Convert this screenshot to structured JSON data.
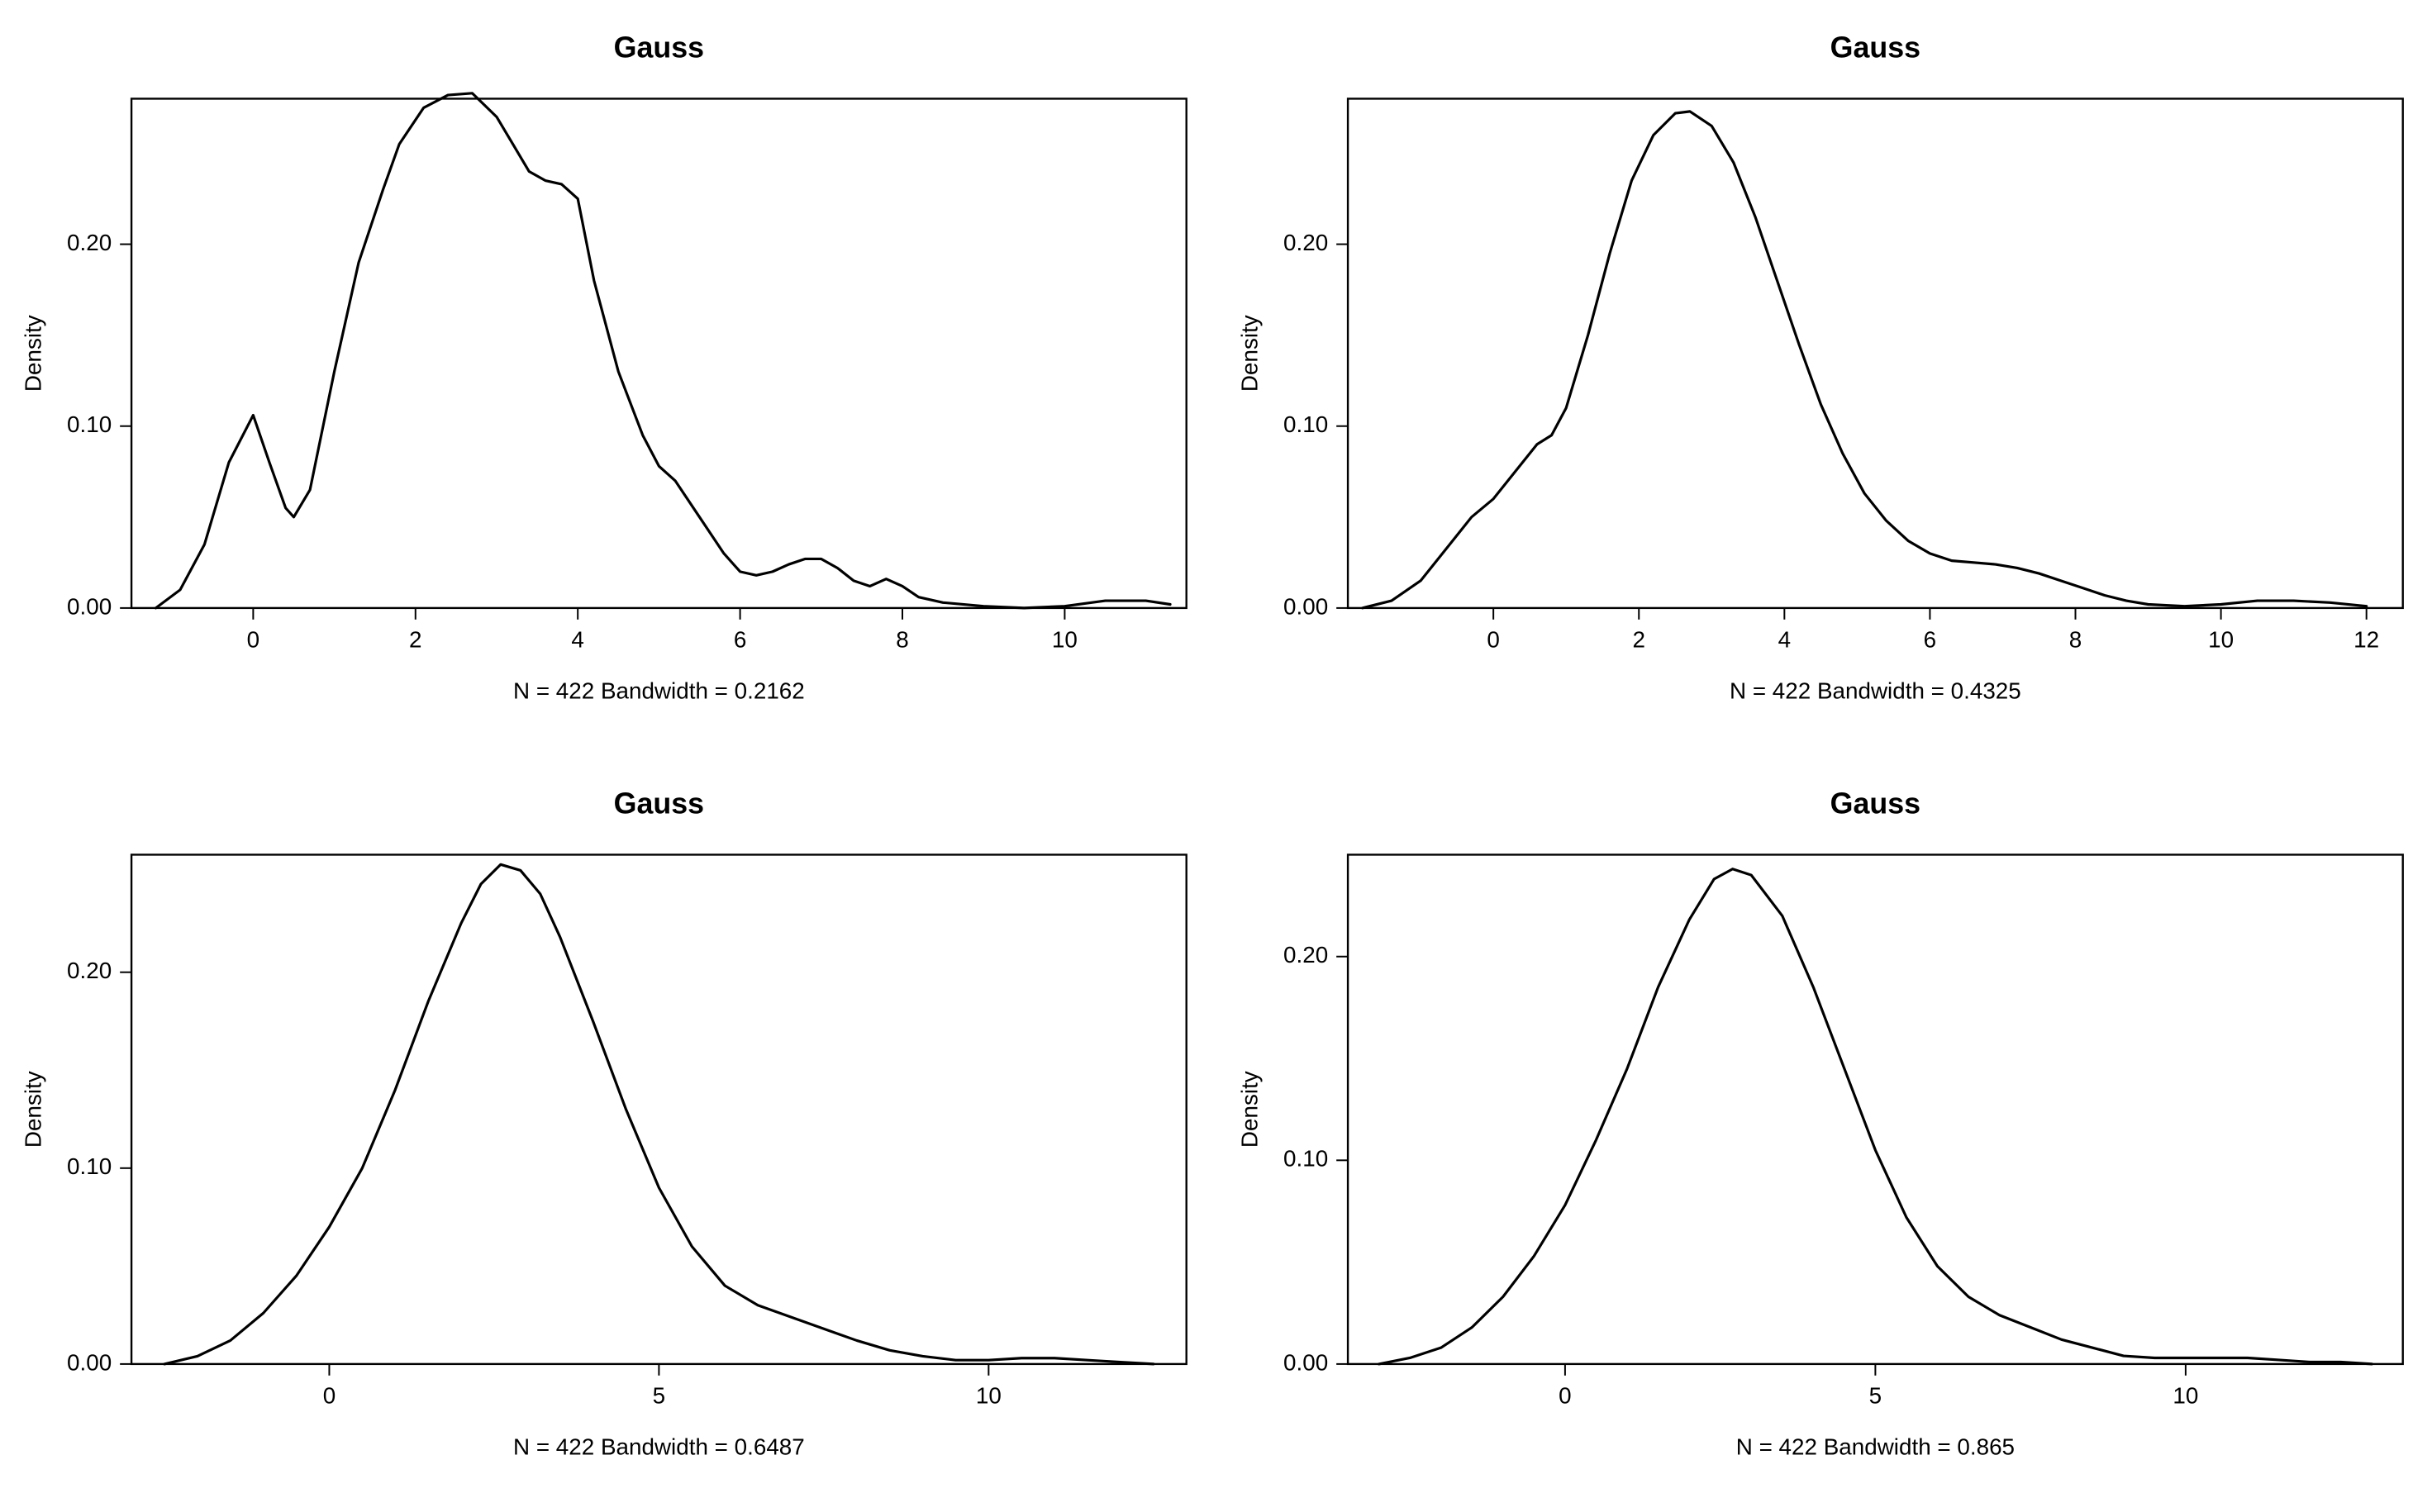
{
  "layout": {
    "rows": 2,
    "cols": 2,
    "background_color": "#ffffff"
  },
  "panels": [
    {
      "id": "p1",
      "type": "density",
      "title": "Gauss",
      "ylabel": "Density",
      "sublabel": "N = 422   Bandwidth = 0.2162",
      "xlim": [
        -1.5,
        11.5
      ],
      "ylim": [
        0.0,
        0.28
      ],
      "xticks": [
        0,
        2,
        4,
        6,
        8,
        10
      ],
      "yticks": [
        0.0,
        0.1,
        0.2
      ],
      "title_fontsize": 18,
      "title_fontweight": "bold",
      "label_fontsize": 14,
      "tick_fontsize": 14,
      "line_color": "#000000",
      "line_width": 1.6,
      "box_color": "#000000",
      "baseline_color": "#b0b0b0",
      "curve": [
        [
          -1.2,
          0.0
        ],
        [
          -0.9,
          0.01
        ],
        [
          -0.6,
          0.035
        ],
        [
          -0.3,
          0.08
        ],
        [
          0.0,
          0.106
        ],
        [
          0.2,
          0.08
        ],
        [
          0.4,
          0.055
        ],
        [
          0.5,
          0.05
        ],
        [
          0.7,
          0.065
        ],
        [
          1.0,
          0.13
        ],
        [
          1.3,
          0.19
        ],
        [
          1.6,
          0.23
        ],
        [
          1.8,
          0.255
        ],
        [
          2.1,
          0.275
        ],
        [
          2.4,
          0.282
        ],
        [
          2.7,
          0.283
        ],
        [
          3.0,
          0.27
        ],
        [
          3.2,
          0.255
        ],
        [
          3.4,
          0.24
        ],
        [
          3.6,
          0.235
        ],
        [
          3.8,
          0.233
        ],
        [
          4.0,
          0.225
        ],
        [
          4.2,
          0.18
        ],
        [
          4.5,
          0.13
        ],
        [
          4.8,
          0.095
        ],
        [
          5.0,
          0.078
        ],
        [
          5.2,
          0.07
        ],
        [
          5.5,
          0.05
        ],
        [
          5.8,
          0.03
        ],
        [
          6.0,
          0.02
        ],
        [
          6.2,
          0.018
        ],
        [
          6.4,
          0.02
        ],
        [
          6.6,
          0.024
        ],
        [
          6.8,
          0.027
        ],
        [
          7.0,
          0.027
        ],
        [
          7.2,
          0.022
        ],
        [
          7.4,
          0.015
        ],
        [
          7.6,
          0.012
        ],
        [
          7.8,
          0.016
        ],
        [
          8.0,
          0.012
        ],
        [
          8.2,
          0.006
        ],
        [
          8.5,
          0.003
        ],
        [
          9.0,
          0.001
        ],
        [
          9.5,
          0.0
        ],
        [
          10.0,
          0.001
        ],
        [
          10.5,
          0.004
        ],
        [
          11.0,
          0.004
        ],
        [
          11.3,
          0.002
        ]
      ]
    },
    {
      "id": "p2",
      "type": "density",
      "title": "Gauss",
      "ylabel": "Density",
      "sublabel": "N = 422   Bandwidth = 0.4325",
      "xlim": [
        -2,
        12.5
      ],
      "ylim": [
        0.0,
        0.28
      ],
      "xticks": [
        0,
        2,
        4,
        6,
        8,
        10,
        12
      ],
      "yticks": [
        0.0,
        0.1,
        0.2
      ],
      "title_fontsize": 18,
      "title_fontweight": "bold",
      "label_fontsize": 14,
      "tick_fontsize": 14,
      "line_color": "#000000",
      "line_width": 1.6,
      "box_color": "#000000",
      "baseline_color": "#b0b0b0",
      "curve": [
        [
          -1.8,
          0.0
        ],
        [
          -1.4,
          0.004
        ],
        [
          -1.0,
          0.015
        ],
        [
          -0.6,
          0.035
        ],
        [
          -0.3,
          0.05
        ],
        [
          0.0,
          0.06
        ],
        [
          0.3,
          0.075
        ],
        [
          0.6,
          0.09
        ],
        [
          0.8,
          0.095
        ],
        [
          1.0,
          0.11
        ],
        [
          1.3,
          0.15
        ],
        [
          1.6,
          0.195
        ],
        [
          1.9,
          0.235
        ],
        [
          2.2,
          0.26
        ],
        [
          2.5,
          0.272
        ],
        [
          2.7,
          0.273
        ],
        [
          3.0,
          0.265
        ],
        [
          3.3,
          0.245
        ],
        [
          3.6,
          0.215
        ],
        [
          3.9,
          0.18
        ],
        [
          4.2,
          0.145
        ],
        [
          4.5,
          0.112
        ],
        [
          4.8,
          0.085
        ],
        [
          5.1,
          0.063
        ],
        [
          5.4,
          0.048
        ],
        [
          5.7,
          0.037
        ],
        [
          6.0,
          0.03
        ],
        [
          6.3,
          0.026
        ],
        [
          6.6,
          0.025
        ],
        [
          6.9,
          0.024
        ],
        [
          7.2,
          0.022
        ],
        [
          7.5,
          0.019
        ],
        [
          7.8,
          0.015
        ],
        [
          8.1,
          0.011
        ],
        [
          8.4,
          0.007
        ],
        [
          8.7,
          0.004
        ],
        [
          9.0,
          0.002
        ],
        [
          9.5,
          0.001
        ],
        [
          10.0,
          0.002
        ],
        [
          10.5,
          0.004
        ],
        [
          11.0,
          0.004
        ],
        [
          11.5,
          0.003
        ],
        [
          12.0,
          0.001
        ]
      ]
    },
    {
      "id": "p3",
      "type": "density",
      "title": "Gauss",
      "ylabel": "Density",
      "sublabel": "N = 422   Bandwidth = 0.6487",
      "xlim": [
        -3,
        13
      ],
      "ylim": [
        0.0,
        0.26
      ],
      "xticks": [
        0,
        5,
        10
      ],
      "yticks": [
        0.0,
        0.1,
        0.2
      ],
      "title_fontsize": 18,
      "title_fontweight": "bold",
      "label_fontsize": 14,
      "tick_fontsize": 14,
      "line_color": "#000000",
      "line_width": 1.6,
      "box_color": "#000000",
      "baseline_color": "#b0b0b0",
      "curve": [
        [
          -2.5,
          0.0
        ],
        [
          -2.0,
          0.004
        ],
        [
          -1.5,
          0.012
        ],
        [
          -1.0,
          0.026
        ],
        [
          -0.5,
          0.045
        ],
        [
          0.0,
          0.07
        ],
        [
          0.5,
          0.1
        ],
        [
          1.0,
          0.14
        ],
        [
          1.5,
          0.185
        ],
        [
          2.0,
          0.225
        ],
        [
          2.3,
          0.245
        ],
        [
          2.6,
          0.255
        ],
        [
          2.9,
          0.252
        ],
        [
          3.2,
          0.24
        ],
        [
          3.5,
          0.218
        ],
        [
          4.0,
          0.175
        ],
        [
          4.5,
          0.13
        ],
        [
          5.0,
          0.09
        ],
        [
          5.5,
          0.06
        ],
        [
          6.0,
          0.04
        ],
        [
          6.5,
          0.03
        ],
        [
          7.0,
          0.024
        ],
        [
          7.5,
          0.018
        ],
        [
          8.0,
          0.012
        ],
        [
          8.5,
          0.007
        ],
        [
          9.0,
          0.004
        ],
        [
          9.5,
          0.002
        ],
        [
          10.0,
          0.002
        ],
        [
          10.5,
          0.003
        ],
        [
          11.0,
          0.003
        ],
        [
          11.5,
          0.002
        ],
        [
          12.0,
          0.001
        ],
        [
          12.5,
          0.0
        ]
      ]
    },
    {
      "id": "p4",
      "type": "density",
      "title": "Gauss",
      "ylabel": "Density",
      "sublabel": "N = 422   Bandwidth = 0.865",
      "xlim": [
        -3.5,
        13.5
      ],
      "ylim": [
        0.0,
        0.25
      ],
      "xticks": [
        0,
        5,
        10
      ],
      "yticks": [
        0.0,
        0.1,
        0.2
      ],
      "title_fontsize": 18,
      "title_fontweight": "bold",
      "label_fontsize": 14,
      "tick_fontsize": 14,
      "line_color": "#000000",
      "line_width": 1.6,
      "box_color": "#000000",
      "baseline_color": "#b0b0b0",
      "curve": [
        [
          -3.0,
          0.0
        ],
        [
          -2.5,
          0.003
        ],
        [
          -2.0,
          0.008
        ],
        [
          -1.5,
          0.018
        ],
        [
          -1.0,
          0.033
        ],
        [
          -0.5,
          0.053
        ],
        [
          0.0,
          0.078
        ],
        [
          0.5,
          0.11
        ],
        [
          1.0,
          0.145
        ],
        [
          1.5,
          0.185
        ],
        [
          2.0,
          0.218
        ],
        [
          2.4,
          0.238
        ],
        [
          2.7,
          0.243
        ],
        [
          3.0,
          0.24
        ],
        [
          3.5,
          0.22
        ],
        [
          4.0,
          0.185
        ],
        [
          4.5,
          0.145
        ],
        [
          5.0,
          0.105
        ],
        [
          5.5,
          0.072
        ],
        [
          6.0,
          0.048
        ],
        [
          6.5,
          0.033
        ],
        [
          7.0,
          0.024
        ],
        [
          7.5,
          0.018
        ],
        [
          8.0,
          0.012
        ],
        [
          8.5,
          0.008
        ],
        [
          9.0,
          0.004
        ],
        [
          9.5,
          0.003
        ],
        [
          10.0,
          0.003
        ],
        [
          10.5,
          0.003
        ],
        [
          11.0,
          0.003
        ],
        [
          11.5,
          0.002
        ],
        [
          12.0,
          0.001
        ],
        [
          12.5,
          0.001
        ],
        [
          13.0,
          0.0
        ]
      ]
    }
  ]
}
